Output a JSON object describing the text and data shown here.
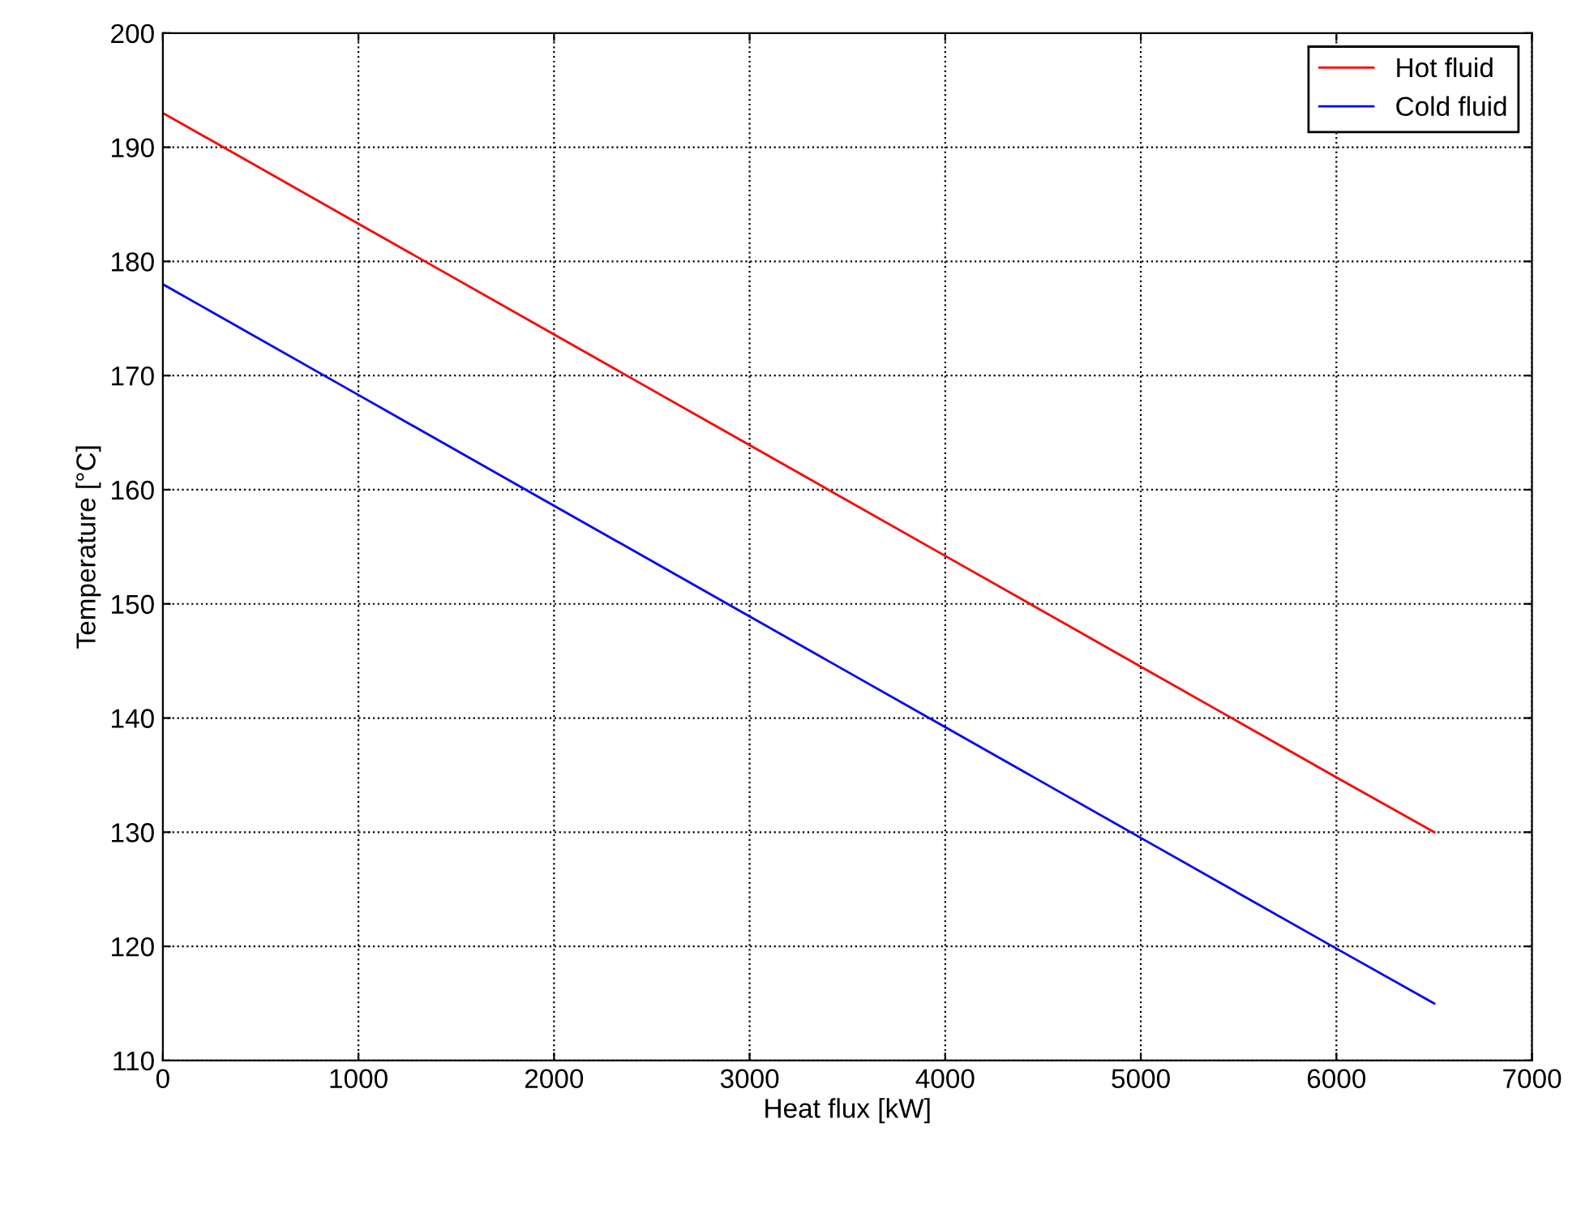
{
  "chart_data": {
    "type": "line",
    "xlabel": "Heat flux [kW]",
    "ylabel": "Temperature [°C]",
    "xlim": [
      0,
      7000
    ],
    "xticks": [
      0,
      1000,
      2000,
      3000,
      4000,
      5000,
      6000,
      7000
    ],
    "ylim": [
      110,
      200
    ],
    "yticks": [
      110,
      120,
      130,
      140,
      150,
      160,
      170,
      180,
      190,
      200
    ],
    "grid": true,
    "legend": "top right",
    "marker": "none",
    "line_style": "solid",
    "series": [
      {
        "name": "Hot fluid",
        "color": "#ff0000",
        "x": [
          0,
          1000,
          2000,
          3000,
          4000,
          5000,
          6000,
          6500
        ],
        "values": [
          193,
          183.3,
          173.6,
          163.9,
          154.2,
          144.5,
          134.8,
          130
        ]
      },
      {
        "name": "Cold fluid",
        "color": "#0000ff",
        "x": [
          0,
          1000,
          2000,
          3000,
          4000,
          5000,
          6000,
          6500
        ],
        "values": [
          178,
          168.3,
          158.6,
          148.9,
          139.2,
          129.5,
          119.8,
          115
        ]
      }
    ]
  }
}
